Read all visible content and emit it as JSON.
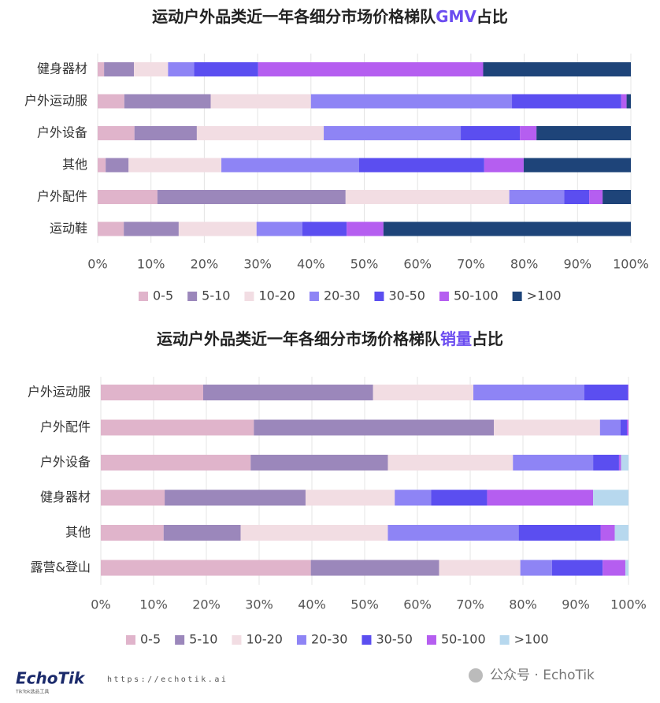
{
  "chart_data": [
    {
      "type": "stacked-bar-horizontal",
      "title": [
        "运动户外品类近一年各细分市场价格梯队",
        "GMV",
        "占比"
      ],
      "title_highlight_color": "#6b4cf0",
      "categories": [
        "健身器材",
        "户外运动服",
        "户外设备",
        "其他",
        "户外配件",
        "运动鞋"
      ],
      "series": [
        {
          "name": "0-5",
          "color": "#e0b4cb",
          "values": [
            1.2,
            5.0,
            6.9,
            1.5,
            11.2,
            4.9
          ]
        },
        {
          "name": "5-10",
          "color": "#9b87bb",
          "values": [
            5.6,
            16.2,
            11.7,
            4.3,
            35.3,
            10.3
          ]
        },
        {
          "name": "10-20",
          "color": "#f2dde3",
          "values": [
            6.4,
            18.8,
            23.8,
            17.4,
            30.7,
            14.6
          ]
        },
        {
          "name": "20-30",
          "color": "#8e84f5",
          "values": [
            4.9,
            37.7,
            25.7,
            25.8,
            10.3,
            8.6
          ]
        },
        {
          "name": "30-50",
          "color": "#5b4ef0",
          "values": [
            12.0,
            20.5,
            11.1,
            23.5,
            4.7,
            8.3
          ]
        },
        {
          "name": "50-100",
          "color": "#b55ef0",
          "values": [
            42.2,
            1.0,
            3.1,
            7.4,
            2.5,
            6.9
          ]
        },
        {
          "name": ">100",
          "color": "#1e4479",
          "values": [
            27.7,
            0.8,
            17.7,
            20.1,
            5.3,
            46.4
          ]
        }
      ],
      "xlim": [
        0,
        100
      ],
      "xticks": [
        {
          "value": 0,
          "label": "0%"
        },
        {
          "value": 10,
          "label": "10%"
        },
        {
          "value": 20,
          "label": "20%"
        },
        {
          "value": 30,
          "label": "30%"
        },
        {
          "value": 40,
          "label": "40%"
        },
        {
          "value": 50,
          "label": "50%"
        },
        {
          "value": 60,
          "label": "60%"
        },
        {
          "value": 70,
          "label": "70%"
        },
        {
          "value": 80,
          "label": "80%"
        },
        {
          "value": 90,
          "label": "90%"
        },
        {
          "value": 100,
          "label": "100%"
        }
      ],
      "grid": true
    },
    {
      "type": "stacked-bar-horizontal",
      "title": [
        "运动户外品类近一年各细分市场价格梯队",
        "销量",
        "占比"
      ],
      "title_highlight_color": "#6b4cf0",
      "categories": [
        "户外运动服",
        "户外配件",
        "户外设备",
        "健身器材",
        "其他",
        "露营&登山"
      ],
      "series": [
        {
          "name": "0-5",
          "color": "#e0b4cb",
          "values": [
            19.4,
            29.0,
            28.4,
            12.1,
            11.9,
            39.8
          ]
        },
        {
          "name": "5-10",
          "color": "#9b87bb",
          "values": [
            32.2,
            45.5,
            26.0,
            26.7,
            14.6,
            24.3
          ]
        },
        {
          "name": "10-20",
          "color": "#f2dde3",
          "values": [
            19.0,
            20.1,
            23.7,
            16.9,
            27.9,
            15.4
          ]
        },
        {
          "name": "20-30",
          "color": "#8e84f5",
          "values": [
            21.0,
            3.9,
            15.2,
            6.9,
            24.8,
            6.0
          ]
        },
        {
          "name": "30-50",
          "color": "#5b4ef0",
          "values": [
            8.3,
            1.2,
            4.9,
            10.6,
            15.5,
            9.6
          ]
        },
        {
          "name": "50-100",
          "color": "#b55ef0",
          "values": [
            0.1,
            0.3,
            0.4,
            20.1,
            2.7,
            4.3
          ]
        },
        {
          "name": ">100",
          "color": "#b7d8ee",
          "values": [
            0,
            0,
            1.4,
            6.7,
            2.6,
            0.6
          ]
        }
      ],
      "xlim": [
        0,
        100
      ],
      "xticks": [
        {
          "value": 0,
          "label": "0%"
        },
        {
          "value": 10,
          "label": "10%"
        },
        {
          "value": 20,
          "label": "20%"
        },
        {
          "value": 30,
          "label": "30%"
        },
        {
          "value": 40,
          "label": "40%"
        },
        {
          "value": 50,
          "label": "50%"
        },
        {
          "value": 60,
          "label": "60%"
        },
        {
          "value": 70,
          "label": "70%"
        },
        {
          "value": 80,
          "label": "80%"
        },
        {
          "value": 90,
          "label": "90%"
        },
        {
          "value": 100,
          "label": "100%"
        }
      ],
      "grid": true
    }
  ],
  "footer": {
    "logo": "EchoTik",
    "logo_sub": "TikTok选品工具",
    "url": "https://echotik.ai",
    "account": "公众号 · EchoTik"
  }
}
